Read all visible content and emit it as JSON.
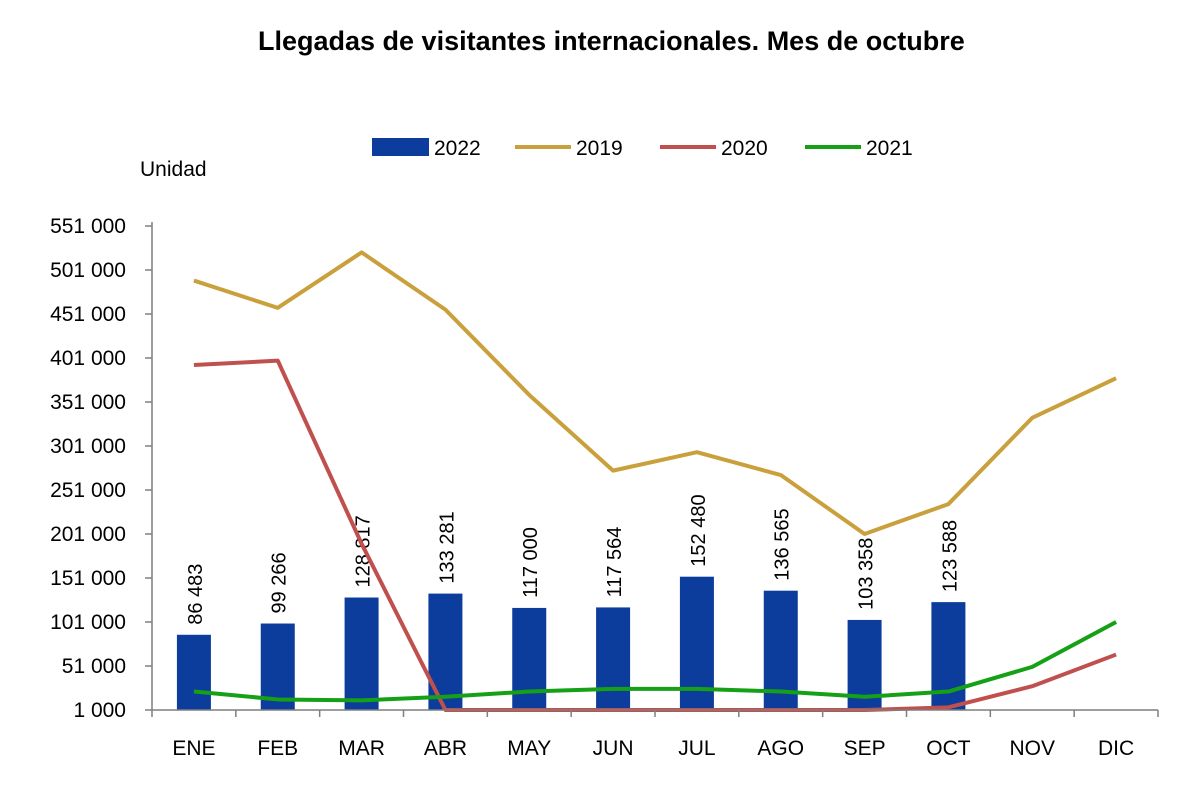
{
  "chart_data": {
    "type": "bar",
    "title": "Llegadas de visitantes internacionales. Mes de octubre",
    "ylabel": "Unidad",
    "xlabel": "",
    "categories": [
      "ENE",
      "FEB",
      "MAR",
      "ABR",
      "MAY",
      "JUN",
      "JUL",
      "AGO",
      "SEP",
      "OCT",
      "NOV",
      "DIC"
    ],
    "y_ticks": [
      "1 000",
      "51 000",
      "101 000",
      "151 000",
      "201 000",
      "251 000",
      "301 000",
      "351 000",
      "401 000",
      "451 000",
      "501 000",
      "551 000"
    ],
    "ylim": [
      1000,
      551000
    ],
    "grid": false,
    "legend_position": "top",
    "bar_series": {
      "name": "2022",
      "color": "#0c3c9c",
      "values": [
        86483,
        99266,
        128817,
        133281,
        117000,
        117564,
        152480,
        136565,
        103358,
        123588
      ],
      "labels": [
        "86 483",
        "99 266",
        "128 817",
        "133 281",
        "117 000",
        "117 564",
        "152 480",
        "136 565",
        "103 358",
        "123 588"
      ]
    },
    "line_series": [
      {
        "name": "2019",
        "color": "#c9a03c",
        "values": [
          489000,
          458000,
          521000,
          456000,
          359000,
          273000,
          294000,
          268000,
          201000,
          235000,
          333000,
          378000
        ]
      },
      {
        "name": "2020",
        "color": "#c0504d",
        "values": [
          393000,
          398000,
          190000,
          1000,
          1000,
          1000,
          1000,
          1000,
          1000,
          4000,
          28000,
          64000
        ]
      },
      {
        "name": "2021",
        "color": "#16a016",
        "values": [
          22000,
          13000,
          12000,
          16000,
          22000,
          25000,
          25000,
          22000,
          16000,
          22000,
          50000,
          101000
        ]
      }
    ]
  }
}
